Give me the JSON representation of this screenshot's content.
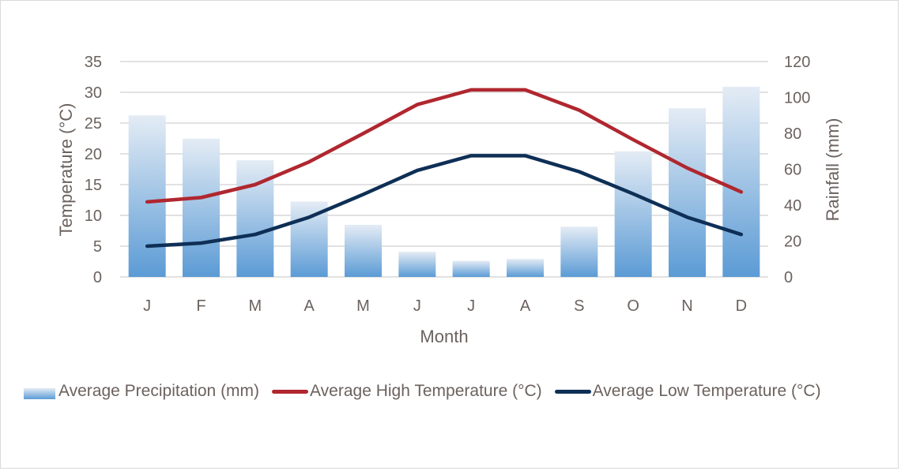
{
  "chart_data": {
    "type": "bar+line",
    "title": "",
    "xlabel": "Month",
    "ylabel_left": "Temperature (°C)",
    "ylabel_right": "Rainfall (mm)",
    "categories": [
      "J",
      "F",
      "M",
      "A",
      "M",
      "J",
      "J",
      "A",
      "S",
      "O",
      "N",
      "D"
    ],
    "y_left": {
      "range": [
        0,
        35
      ],
      "ticks": [
        "0",
        "5",
        "10",
        "15",
        "20",
        "25",
        "30",
        "35"
      ]
    },
    "y_right": {
      "range": [
        0,
        120
      ],
      "ticks": [
        "0",
        "20",
        "40",
        "60",
        "80",
        "100",
        "120"
      ]
    },
    "grid": true,
    "legend_position": "bottom",
    "series": [
      {
        "name": "Average Precipitation (mm)",
        "type": "bar",
        "axis": "right",
        "color_top": "#e4ecf5",
        "color_bottom": "#5b9bd5",
        "values": [
          90,
          77,
          65,
          42,
          29,
          14,
          9,
          10,
          28,
          70,
          94,
          106
        ]
      },
      {
        "name": "Average High Temperature (°C)",
        "type": "line",
        "axis": "left",
        "color": "#b0272f",
        "values": [
          12.2,
          12.9,
          15.0,
          18.7,
          23.3,
          28.0,
          30.4,
          30.4,
          27.1,
          22.3,
          17.7,
          13.8
        ]
      },
      {
        "name": "Average Low Temperature (°C)",
        "type": "line",
        "axis": "left",
        "color": "#0e2f56",
        "values": [
          5.0,
          5.5,
          6.9,
          9.7,
          13.4,
          17.3,
          19.7,
          19.7,
          17.1,
          13.5,
          9.7,
          6.9
        ]
      }
    ]
  }
}
